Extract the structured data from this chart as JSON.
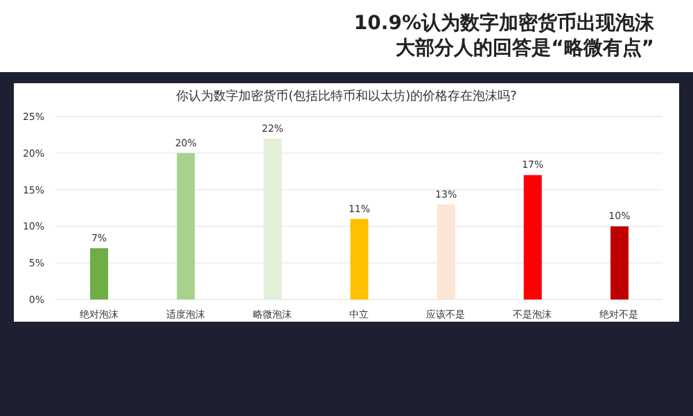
{
  "chart_data": {
    "type": "bar",
    "title": "10.9%认为数字加密货币出现泡沫大部分人的回答是“略微有点”",
    "subtitle": "你认为数字加密货币(包括比特币和以太坊)的价格存在泡沫吗?",
    "categories": [
      "绝对泡沫",
      "适度泡沫",
      "略微泡沫",
      "中立",
      "应该不是",
      "不是泡沫",
      "绝对不是"
    ],
    "values": [
      7,
      20,
      22,
      11,
      13,
      17,
      10
    ],
    "colors": [
      "#70ad47",
      "#a9d18e",
      "#e2f0d9",
      "#ffc000",
      "#fbe5d6",
      "#ff0000",
      "#c00000"
    ],
    "value_labels": [
      "7%",
      "20%",
      "22%",
      "11%",
      "13%",
      "17%",
      "10%"
    ],
    "ylim": [
      0,
      25
    ],
    "yticks": [
      {
        "value": 0,
        "label": "0%"
      },
      {
        "value": 5,
        "label": "5%"
      },
      {
        "value": 10,
        "label": "10%"
      },
      {
        "value": 15,
        "label": "15%"
      },
      {
        "value": 20,
        "label": "20%"
      },
      {
        "value": 25,
        "label": "25%"
      }
    ],
    "grid": "y"
  }
}
